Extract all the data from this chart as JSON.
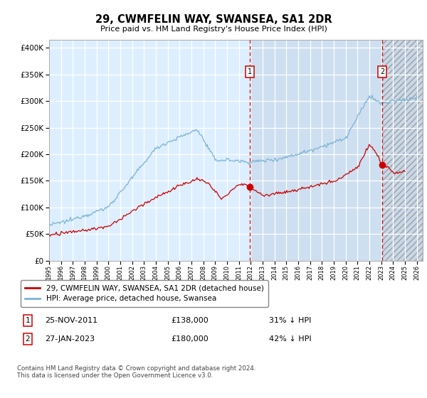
{
  "title": "29, CWMFELIN WAY, SWANSEA, SA1 2DR",
  "subtitle": "Price paid vs. HM Land Registry's House Price Index (HPI)",
  "ytick_values": [
    0,
    50000,
    100000,
    150000,
    200000,
    250000,
    300000,
    350000,
    400000
  ],
  "ylim": [
    0,
    415000
  ],
  "xlim_start": 1995.0,
  "xlim_end": 2026.5,
  "hpi_color": "#7ab3d4",
  "price_color": "#cc0000",
  "bg_left": "#ddeeff",
  "bg_right_light": "#ddeeff",
  "marker1_year": 2011.92,
  "marker2_year": 2023.08,
  "marker1_price": 138000,
  "marker2_price": 180000,
  "annotation1": "25-NOV-2011",
  "annotation1_price": "£138,000",
  "annotation1_pct": "31% ↓ HPI",
  "annotation2": "27-JAN-2023",
  "annotation2_price": "£180,000",
  "annotation2_pct": "42% ↓ HPI",
  "legend1": "29, CWMFELIN WAY, SWANSEA, SA1 2DR (detached house)",
  "legend2": "HPI: Average price, detached house, Swansea",
  "footer": "Contains HM Land Registry data © Crown copyright and database right 2024.\nThis data is licensed under the Open Government Licence v3.0."
}
